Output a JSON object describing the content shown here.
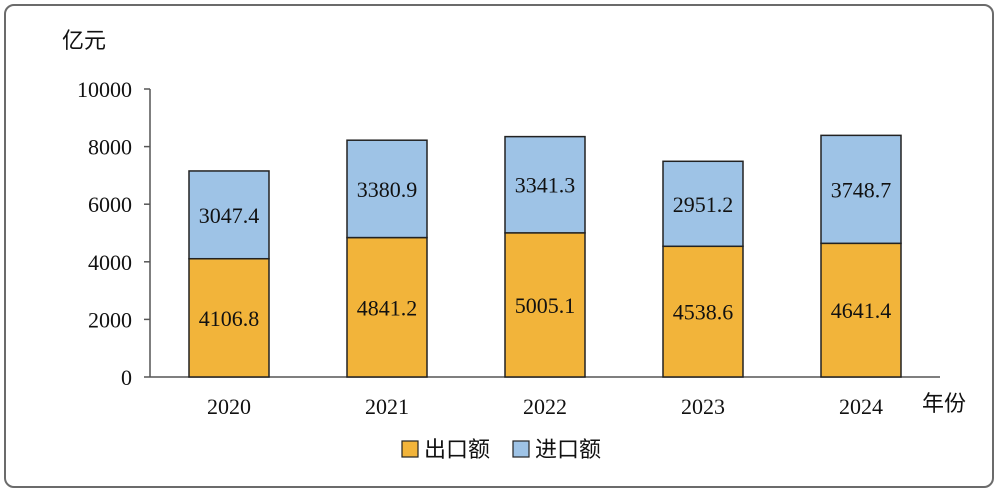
{
  "chart_data": {
    "type": "bar",
    "stacked": true,
    "y_unit": "亿元",
    "x_unit": "年份",
    "categories": [
      "2020",
      "2021",
      "2022",
      "2023",
      "2024"
    ],
    "series": [
      {
        "name": "出口额",
        "color": "#f2b43a",
        "values": [
          4106.8,
          4841.2,
          5005.1,
          4538.6,
          4641.4
        ]
      },
      {
        "name": "进口额",
        "color": "#9ec3e6",
        "values": [
          3047.4,
          3380.9,
          3341.3,
          2951.2,
          3748.7
        ]
      }
    ],
    "ylim": [
      0,
      10000
    ],
    "yticks": [
      "0",
      "2000",
      "4000",
      "6000",
      "8000",
      "10000"
    ],
    "grid": false,
    "legend_position": "bottom"
  }
}
